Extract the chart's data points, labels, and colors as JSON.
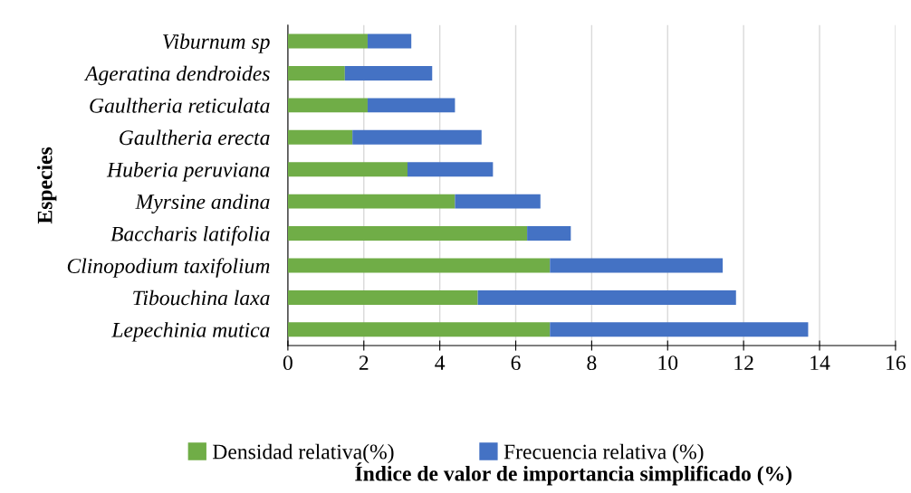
{
  "chart_data": {
    "type": "bar",
    "orientation": "horizontal",
    "stacked": true,
    "categories": [
      "Viburnum sp",
      "Ageratina dendroides",
      "Gaultheria reticulata",
      "Gaultheria erecta",
      "Huberia peruviana",
      "Myrsine andina",
      "Baccharis latifolia",
      "Clinopodium taxifolium",
      "Tibouchina laxa",
      "Lepechinia mutica"
    ],
    "series": [
      {
        "name": "Densidad relativa(%)",
        "color": "#70ad47",
        "values": [
          2.1,
          1.5,
          2.1,
          1.7,
          3.15,
          4.4,
          6.3,
          6.9,
          5.0,
          6.9
        ]
      },
      {
        "name": "Frecuencia relativa (%)",
        "color": "#4472c4",
        "values": [
          1.15,
          2.3,
          2.3,
          3.4,
          2.25,
          2.25,
          1.15,
          4.55,
          6.8,
          6.8
        ]
      }
    ],
    "xlim": [
      0,
      16
    ],
    "xticks": [
      0,
      2,
      4,
      6,
      8,
      10,
      12,
      14,
      16
    ],
    "xlabel": "Índice de valor de importancia simplificado (%)",
    "ylabel": "Especies",
    "grid": "x",
    "legend": "bottom"
  }
}
